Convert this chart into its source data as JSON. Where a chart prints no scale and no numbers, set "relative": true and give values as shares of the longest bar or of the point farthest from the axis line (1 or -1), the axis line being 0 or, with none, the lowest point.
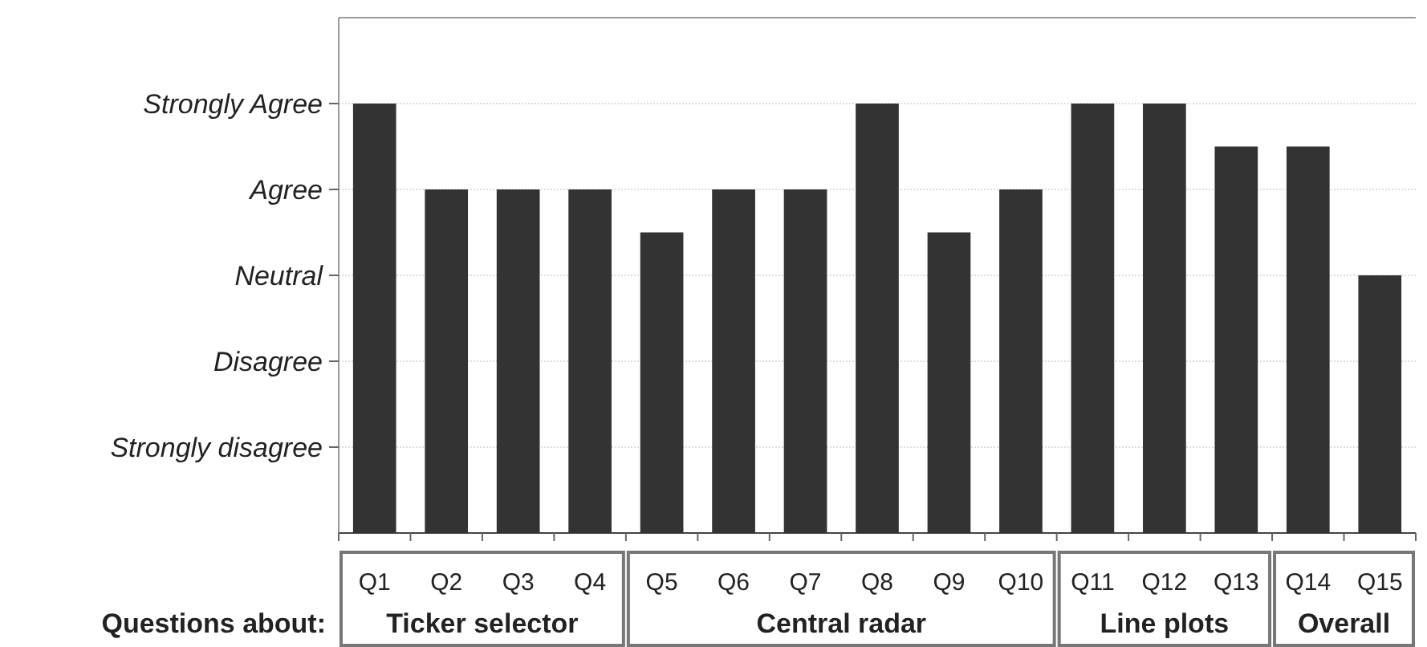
{
  "chart_data": {
    "type": "bar",
    "categories": [
      "Q1",
      "Q2",
      "Q3",
      "Q4",
      "Q5",
      "Q6",
      "Q7",
      "Q8",
      "Q9",
      "Q10",
      "Q11",
      "Q12",
      "Q13",
      "Q14",
      "Q15"
    ],
    "values": [
      1,
      0.8,
      0.8,
      0.8,
      0.7,
      0.8,
      0.8,
      1,
      0.7,
      0.8,
      1,
      1,
      0.9,
      0.9,
      0.6
    ],
    "color": "#333333",
    "relative": true,
    "ref_lines": [
      {
        "axis": "y",
        "value": 0.2,
        "label": "Strongly disagree"
      },
      {
        "axis": "y",
        "value": 0.4,
        "label": "Disagree"
      },
      {
        "axis": "y",
        "value": 0.6,
        "label": "Neutral"
      },
      {
        "axis": "y",
        "value": 0.8,
        "label": "Agree"
      },
      {
        "axis": "y",
        "value": 1,
        "label": "Strongly Agree"
      }
    ],
    "annotations": [
      "Questions about:",
      "Ticker selector",
      "Central radar",
      "Line plots",
      "Overall"
    ]
  }
}
